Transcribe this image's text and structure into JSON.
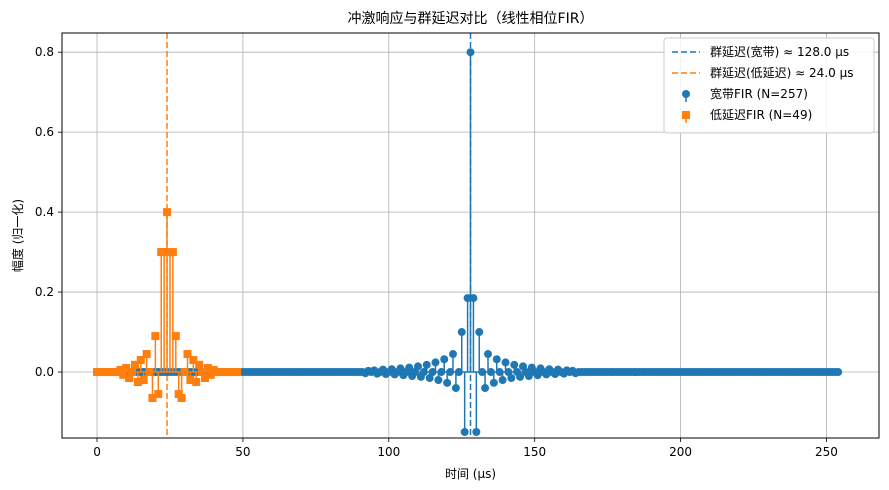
{
  "chart_data": {
    "type": "line",
    "title": "冲激响应与群延迟对比（线性相位FIR）",
    "xlabel": "时间 (μs)",
    "ylabel": "幅度 (归一化)",
    "xlim": [
      -12,
      268
    ],
    "ylim": [
      -0.165,
      0.848
    ],
    "xticks": [
      0,
      50,
      100,
      150,
      200,
      250
    ],
    "yticks": [
      0.0,
      0.2,
      0.4,
      0.6,
      0.8
    ],
    "grid": true,
    "legend_position": "top-right",
    "vlines": [
      {
        "x": 128.0,
        "label": "群延迟(宽带) ≈ 128.0 μs",
        "color": "#1f77b4",
        "style": "dashed"
      },
      {
        "x": 24.0,
        "label": "群延迟(低延迟) ≈ 24.0 μs",
        "color": "#ff7f0e",
        "style": "dashed"
      }
    ],
    "series": [
      {
        "name": "宽带FIR (N=257)",
        "color": "#1f77b4",
        "marker": "circle",
        "x_start": 0,
        "step": 1,
        "values": [
          0,
          0,
          0,
          0,
          0,
          0,
          0,
          0,
          0,
          0,
          0,
          0,
          0,
          0,
          0,
          0,
          0,
          0,
          0,
          0,
          0,
          0,
          0,
          0,
          0,
          0,
          0,
          0,
          0,
          0,
          0,
          0,
          0,
          0,
          0,
          0,
          0,
          0,
          0,
          0,
          0,
          0,
          0,
          0,
          0,
          0,
          0,
          0,
          0,
          0,
          0,
          0,
          0,
          0,
          0,
          0,
          0,
          0,
          0,
          0,
          0,
          0,
          0,
          0,
          0,
          0,
          0,
          0,
          0,
          0,
          0,
          0,
          0,
          0,
          0,
          0,
          0,
          0,
          0,
          0,
          0,
          0,
          0,
          0,
          0,
          0,
          0,
          0,
          0,
          0,
          0,
          0,
          -0.003,
          0.003,
          0,
          0.004,
          -0.004,
          0,
          0.006,
          -0.005,
          0,
          0.007,
          -0.006,
          0,
          0.009,
          -0.008,
          0,
          0.011,
          -0.01,
          0,
          0.014,
          -0.012,
          0,
          0.018,
          -0.015,
          0,
          0.024,
          -0.02,
          0,
          0.032,
          -0.027,
          0,
          0.045,
          -0.04,
          0,
          0.1,
          -0.15,
          0.185,
          0.8,
          0.185,
          -0.15,
          0.1,
          0,
          -0.04,
          0.045,
          0,
          -0.027,
          0.032,
          0,
          -0.02,
          0.024,
          0,
          -0.015,
          0.018,
          0,
          -0.012,
          0.014,
          0,
          -0.01,
          0.011,
          0,
          -0.008,
          0.009,
          0,
          -0.006,
          0.007,
          0,
          -0.005,
          0.006,
          0,
          -0.004,
          0.004,
          0,
          0.003,
          -0.003,
          0,
          0,
          0,
          0,
          0,
          0,
          0,
          0,
          0,
          0,
          0,
          0,
          0,
          0,
          0,
          0,
          0,
          0,
          0,
          0,
          0,
          0,
          0,
          0,
          0,
          0,
          0,
          0,
          0,
          0,
          0,
          0,
          0,
          0,
          0,
          0,
          0,
          0,
          0,
          0,
          0,
          0,
          0,
          0,
          0,
          0,
          0,
          0,
          0,
          0,
          0,
          0,
          0,
          0,
          0,
          0,
          0,
          0,
          0,
          0,
          0,
          0,
          0,
          0,
          0,
          0,
          0,
          0,
          0,
          0,
          0,
          0,
          0,
          0,
          0,
          0,
          0,
          0,
          0,
          0,
          0,
          0,
          0,
          0,
          0,
          0,
          0,
          0,
          0,
          0
        ]
      },
      {
        "name": "低延迟FIR (N=49)",
        "color": "#ff7f0e",
        "marker": "square",
        "x_start": 0,
        "step": 1,
        "values": [
          0,
          0,
          0,
          0,
          0,
          0,
          0,
          0,
          0.005,
          -0.007,
          0.01,
          -0.015,
          0,
          0.018,
          -0.025,
          0.03,
          -0.02,
          0.045,
          0,
          -0.065,
          0.09,
          -0.055,
          0.3,
          0.3,
          0.4,
          0.3,
          0.3,
          0.09,
          -0.055,
          -0.065,
          0,
          0.045,
          -0.02,
          0.03,
          -0.025,
          0.018,
          0,
          -0.015,
          0.01,
          -0.007,
          0.005,
          0,
          0,
          0,
          0,
          0,
          0,
          0,
          0
        ]
      }
    ]
  }
}
